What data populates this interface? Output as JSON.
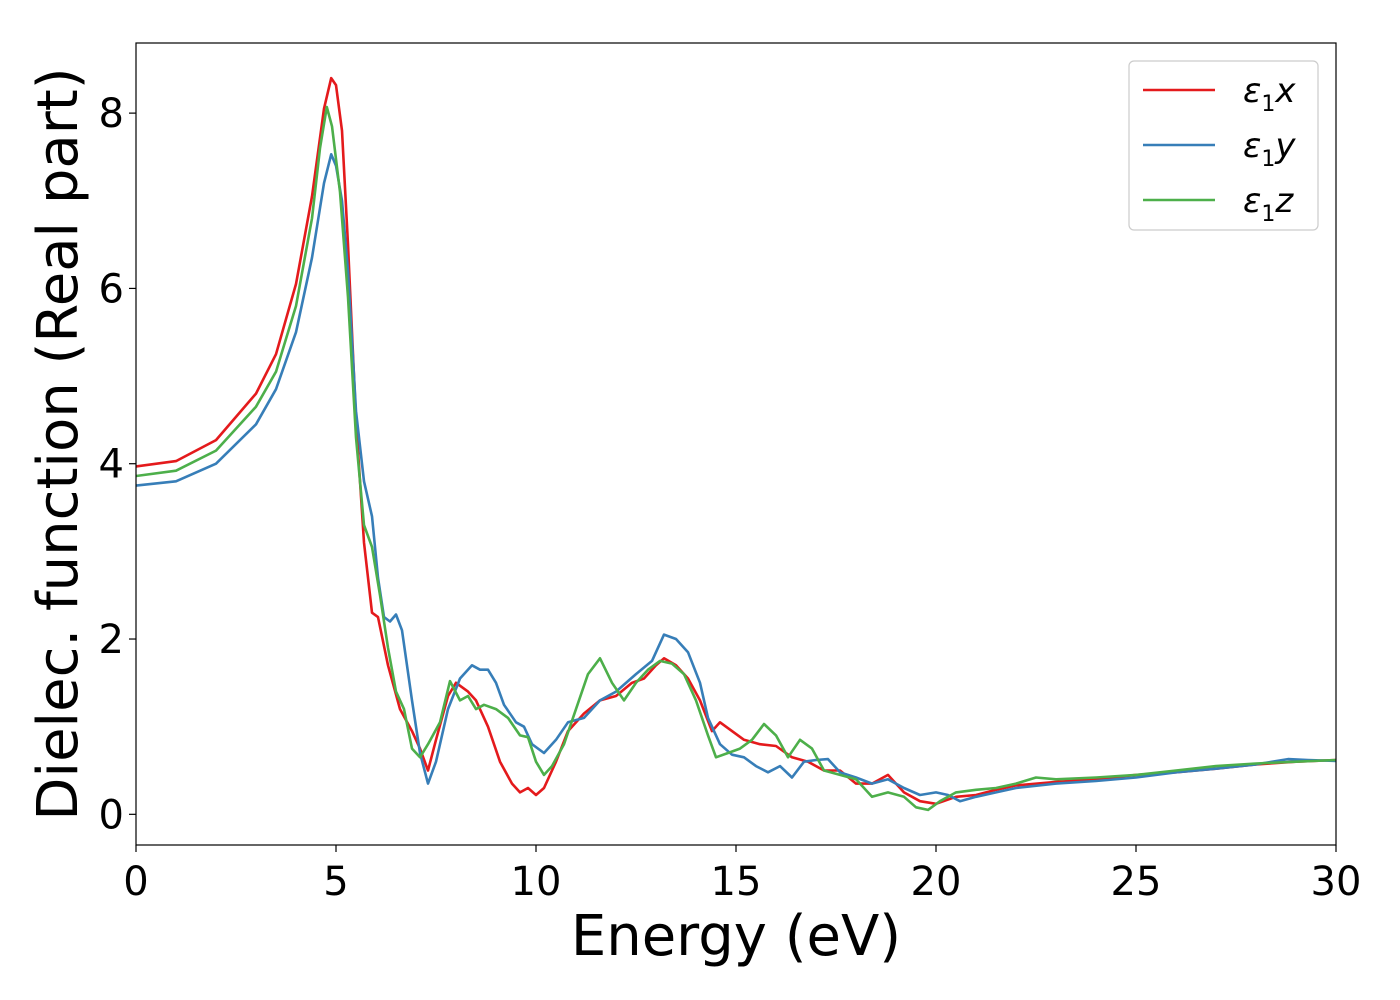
{
  "chart_data": {
    "type": "line",
    "title": "",
    "xlabel": "Energy (eV)",
    "ylabel": "Dielec. function (Real part)",
    "xlim": [
      0,
      30
    ],
    "ylim": [
      -0.35,
      8.8
    ],
    "xticks": [
      0,
      5,
      10,
      15,
      20,
      25,
      30
    ],
    "yticks": [
      0,
      2,
      4,
      6,
      8
    ],
    "grid": false,
    "legend_position": "top-right",
    "series": [
      {
        "name": "ε1x",
        "legend_main": "ε",
        "legend_sub": "1",
        "legend_var": "x",
        "color": "#e41a1c",
        "points": [
          [
            0,
            3.97
          ],
          [
            1,
            4.03
          ],
          [
            2,
            4.27
          ],
          [
            3,
            4.8
          ],
          [
            3.5,
            5.25
          ],
          [
            4,
            6.05
          ],
          [
            4.4,
            7.05
          ],
          [
            4.7,
            8.05
          ],
          [
            4.88,
            8.4
          ],
          [
            5.0,
            8.32
          ],
          [
            5.15,
            7.8
          ],
          [
            5.3,
            6.5
          ],
          [
            5.5,
            4.5
          ],
          [
            5.7,
            3.1
          ],
          [
            5.9,
            2.3
          ],
          [
            6.05,
            2.25
          ],
          [
            6.3,
            1.7
          ],
          [
            6.6,
            1.2
          ],
          [
            6.9,
            0.95
          ],
          [
            7.1,
            0.75
          ],
          [
            7.3,
            0.5
          ],
          [
            7.5,
            0.85
          ],
          [
            7.8,
            1.35
          ],
          [
            8.0,
            1.5
          ],
          [
            8.3,
            1.4
          ],
          [
            8.5,
            1.3
          ],
          [
            8.8,
            1.0
          ],
          [
            9.1,
            0.6
          ],
          [
            9.4,
            0.35
          ],
          [
            9.6,
            0.25
          ],
          [
            9.8,
            0.3
          ],
          [
            10.0,
            0.22
          ],
          [
            10.2,
            0.3
          ],
          [
            10.5,
            0.6
          ],
          [
            10.8,
            0.95
          ],
          [
            11.2,
            1.15
          ],
          [
            11.6,
            1.3
          ],
          [
            12.0,
            1.35
          ],
          [
            12.4,
            1.5
          ],
          [
            12.7,
            1.55
          ],
          [
            13.0,
            1.7
          ],
          [
            13.2,
            1.78
          ],
          [
            13.5,
            1.7
          ],
          [
            13.8,
            1.55
          ],
          [
            14.1,
            1.3
          ],
          [
            14.4,
            0.95
          ],
          [
            14.6,
            1.05
          ],
          [
            14.9,
            0.95
          ],
          [
            15.2,
            0.85
          ],
          [
            15.6,
            0.8
          ],
          [
            16.0,
            0.78
          ],
          [
            16.4,
            0.65
          ],
          [
            16.8,
            0.6
          ],
          [
            17.2,
            0.5
          ],
          [
            17.6,
            0.5
          ],
          [
            18.0,
            0.35
          ],
          [
            18.4,
            0.35
          ],
          [
            18.8,
            0.45
          ],
          [
            19.2,
            0.25
          ],
          [
            19.6,
            0.15
          ],
          [
            20.0,
            0.12
          ],
          [
            20.5,
            0.2
          ],
          [
            21.0,
            0.22
          ],
          [
            21.5,
            0.28
          ],
          [
            22,
            0.33
          ],
          [
            23,
            0.37
          ],
          [
            24,
            0.4
          ],
          [
            25,
            0.45
          ],
          [
            26,
            0.48
          ],
          [
            27,
            0.52
          ],
          [
            28,
            0.57
          ],
          [
            29,
            0.6
          ],
          [
            30,
            0.62
          ]
        ]
      },
      {
        "name": "ε1y",
        "legend_main": "ε",
        "legend_sub": "1",
        "legend_var": "y",
        "color": "#377eb8",
        "points": [
          [
            0,
            3.75
          ],
          [
            1,
            3.8
          ],
          [
            2,
            4.0
          ],
          [
            3,
            4.45
          ],
          [
            3.5,
            4.85
          ],
          [
            4,
            5.5
          ],
          [
            4.4,
            6.35
          ],
          [
            4.7,
            7.2
          ],
          [
            4.88,
            7.53
          ],
          [
            5.0,
            7.4
          ],
          [
            5.15,
            7.0
          ],
          [
            5.3,
            6.2
          ],
          [
            5.5,
            4.6
          ],
          [
            5.7,
            3.8
          ],
          [
            5.9,
            3.4
          ],
          [
            6.05,
            2.7
          ],
          [
            6.2,
            2.25
          ],
          [
            6.35,
            2.2
          ],
          [
            6.5,
            2.28
          ],
          [
            6.65,
            2.1
          ],
          [
            6.9,
            1.3
          ],
          [
            7.1,
            0.7
          ],
          [
            7.3,
            0.35
          ],
          [
            7.5,
            0.6
          ],
          [
            7.8,
            1.2
          ],
          [
            8.1,
            1.55
          ],
          [
            8.4,
            1.7
          ],
          [
            8.6,
            1.65
          ],
          [
            8.8,
            1.65
          ],
          [
            9.0,
            1.5
          ],
          [
            9.2,
            1.25
          ],
          [
            9.5,
            1.05
          ],
          [
            9.7,
            1.0
          ],
          [
            9.9,
            0.8
          ],
          [
            10.2,
            0.7
          ],
          [
            10.5,
            0.85
          ],
          [
            10.8,
            1.05
          ],
          [
            11.2,
            1.1
          ],
          [
            11.6,
            1.3
          ],
          [
            12.0,
            1.4
          ],
          [
            12.5,
            1.6
          ],
          [
            12.9,
            1.75
          ],
          [
            13.2,
            2.05
          ],
          [
            13.5,
            2.0
          ],
          [
            13.8,
            1.85
          ],
          [
            14.1,
            1.5
          ],
          [
            14.3,
            1.1
          ],
          [
            14.6,
            0.8
          ],
          [
            14.9,
            0.68
          ],
          [
            15.2,
            0.65
          ],
          [
            15.5,
            0.55
          ],
          [
            15.8,
            0.48
          ],
          [
            16.1,
            0.55
          ],
          [
            16.4,
            0.42
          ],
          [
            16.7,
            0.6
          ],
          [
            17.0,
            0.62
          ],
          [
            17.3,
            0.63
          ],
          [
            17.6,
            0.48
          ],
          [
            18.0,
            0.42
          ],
          [
            18.4,
            0.35
          ],
          [
            18.8,
            0.4
          ],
          [
            19.2,
            0.3
          ],
          [
            19.6,
            0.22
          ],
          [
            20.0,
            0.25
          ],
          [
            20.3,
            0.22
          ],
          [
            20.6,
            0.15
          ],
          [
            21.0,
            0.2
          ],
          [
            21.5,
            0.25
          ],
          [
            22,
            0.3
          ],
          [
            23,
            0.35
          ],
          [
            24,
            0.38
          ],
          [
            25,
            0.42
          ],
          [
            26,
            0.48
          ],
          [
            27,
            0.52
          ],
          [
            28,
            0.57
          ],
          [
            28.8,
            0.63
          ],
          [
            29.3,
            0.62
          ],
          [
            30,
            0.61
          ]
        ]
      },
      {
        "name": "ε1z",
        "legend_main": "ε",
        "legend_sub": "1",
        "legend_var": "z",
        "color": "#4daf4a",
        "points": [
          [
            0,
            3.86
          ],
          [
            1,
            3.92
          ],
          [
            2,
            4.15
          ],
          [
            3,
            4.65
          ],
          [
            3.5,
            5.05
          ],
          [
            4,
            5.8
          ],
          [
            4.4,
            6.8
          ],
          [
            4.6,
            7.6
          ],
          [
            4.77,
            8.07
          ],
          [
            4.9,
            7.85
          ],
          [
            5.1,
            7.1
          ],
          [
            5.3,
            5.9
          ],
          [
            5.5,
            4.3
          ],
          [
            5.7,
            3.3
          ],
          [
            5.9,
            3.05
          ],
          [
            6.1,
            2.5
          ],
          [
            6.3,
            1.9
          ],
          [
            6.5,
            1.4
          ],
          [
            6.7,
            1.2
          ],
          [
            6.9,
            0.75
          ],
          [
            7.1,
            0.65
          ],
          [
            7.3,
            0.8
          ],
          [
            7.6,
            1.05
          ],
          [
            7.85,
            1.52
          ],
          [
            8.1,
            1.3
          ],
          [
            8.3,
            1.35
          ],
          [
            8.5,
            1.2
          ],
          [
            8.7,
            1.25
          ],
          [
            9.0,
            1.2
          ],
          [
            9.3,
            1.1
          ],
          [
            9.6,
            0.9
          ],
          [
            9.8,
            0.88
          ],
          [
            10.0,
            0.6
          ],
          [
            10.2,
            0.45
          ],
          [
            10.4,
            0.55
          ],
          [
            10.7,
            0.8
          ],
          [
            11.0,
            1.2
          ],
          [
            11.3,
            1.6
          ],
          [
            11.6,
            1.78
          ],
          [
            11.9,
            1.5
          ],
          [
            12.2,
            1.3
          ],
          [
            12.5,
            1.5
          ],
          [
            12.8,
            1.65
          ],
          [
            13.1,
            1.75
          ],
          [
            13.4,
            1.72
          ],
          [
            13.7,
            1.6
          ],
          [
            14.0,
            1.3
          ],
          [
            14.3,
            0.9
          ],
          [
            14.5,
            0.65
          ],
          [
            14.8,
            0.7
          ],
          [
            15.1,
            0.75
          ],
          [
            15.4,
            0.85
          ],
          [
            15.7,
            1.03
          ],
          [
            16.0,
            0.9
          ],
          [
            16.3,
            0.65
          ],
          [
            16.6,
            0.85
          ],
          [
            16.9,
            0.75
          ],
          [
            17.2,
            0.5
          ],
          [
            17.6,
            0.45
          ],
          [
            18.0,
            0.4
          ],
          [
            18.4,
            0.2
          ],
          [
            18.8,
            0.25
          ],
          [
            19.2,
            0.2
          ],
          [
            19.5,
            0.08
          ],
          [
            19.8,
            0.05
          ],
          [
            20.1,
            0.15
          ],
          [
            20.5,
            0.25
          ],
          [
            21.0,
            0.28
          ],
          [
            21.5,
            0.3
          ],
          [
            22,
            0.35
          ],
          [
            22.5,
            0.42
          ],
          [
            23,
            0.4
          ],
          [
            24,
            0.42
          ],
          [
            25,
            0.45
          ],
          [
            26,
            0.5
          ],
          [
            27,
            0.55
          ],
          [
            28,
            0.58
          ],
          [
            29,
            0.6
          ],
          [
            30,
            0.62
          ]
        ]
      }
    ]
  }
}
